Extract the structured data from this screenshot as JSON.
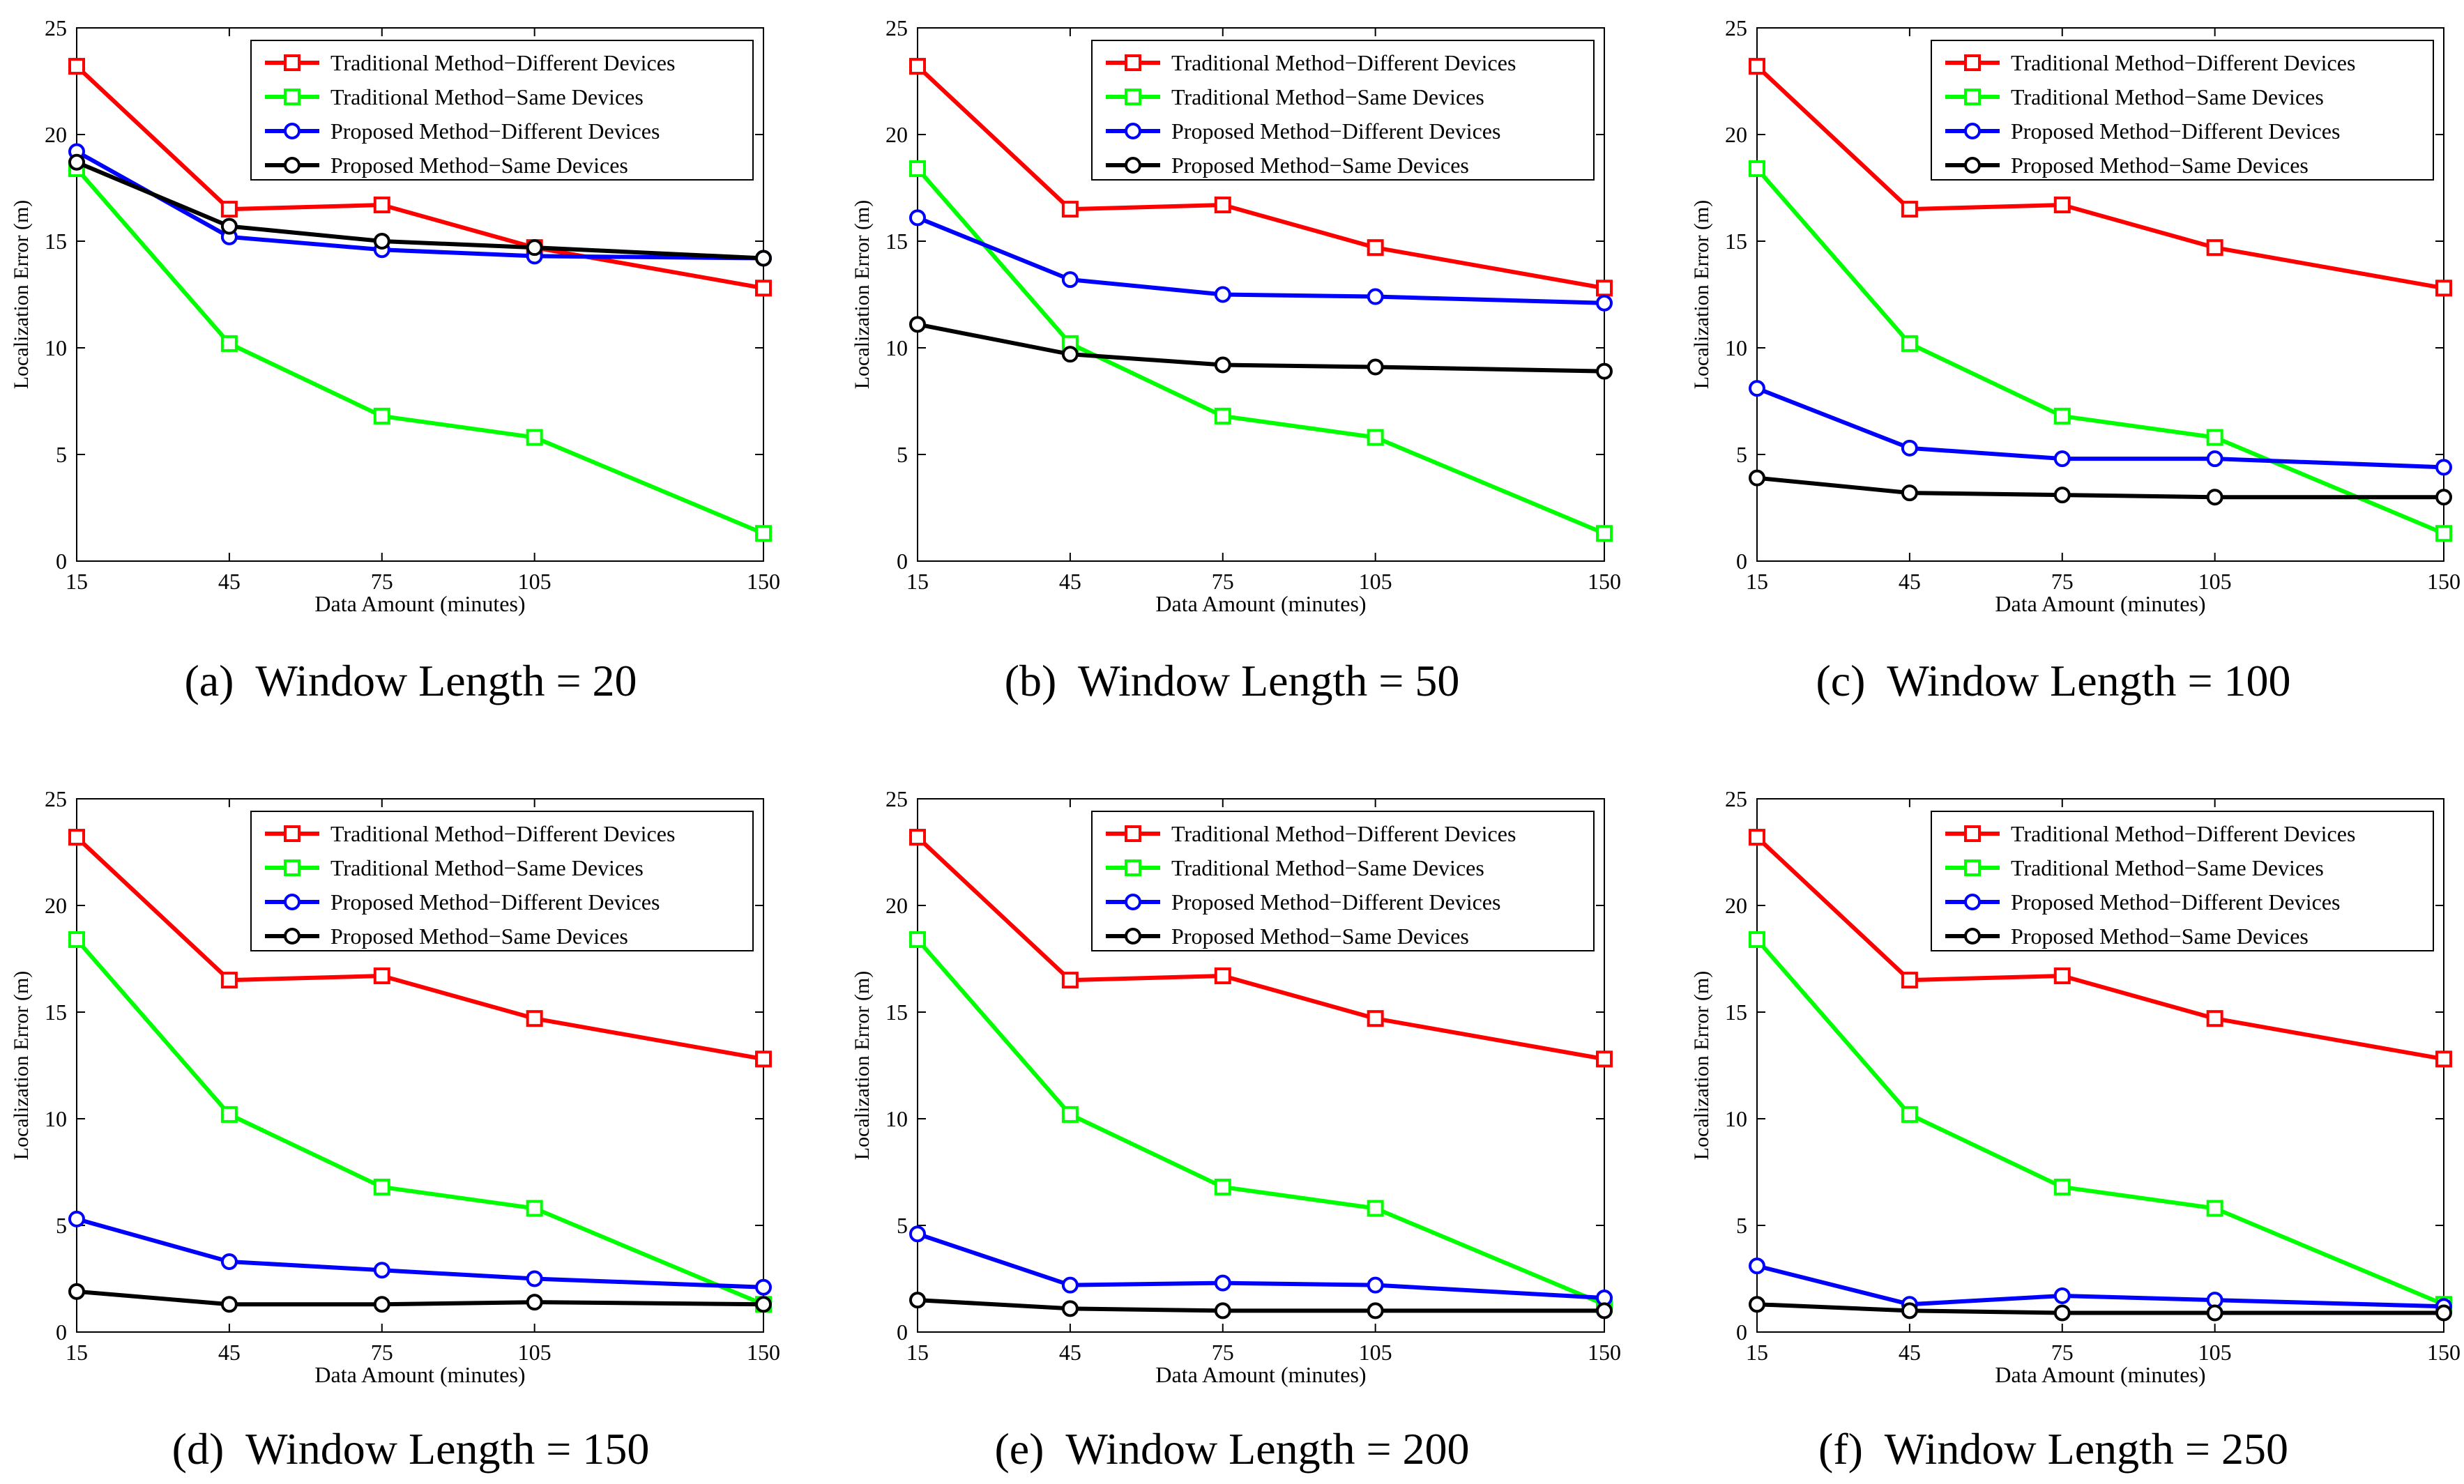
{
  "chart_data": [
    {
      "type": "line",
      "caption_letter": "(a)",
      "caption_text": "Window Length = 20",
      "xlabel": "Data Amount (minutes)",
      "ylabel": "Localization Error (m)",
      "x": [
        15,
        45,
        75,
        105,
        150
      ],
      "x_ticks": [
        "15",
        "45",
        "75",
        "105",
        "150"
      ],
      "y_ticks": [
        "0",
        "5",
        "10",
        "15",
        "20",
        "25"
      ],
      "ylim": [
        0,
        25
      ],
      "legend_position": "top-right",
      "series": [
        {
          "name": "Traditional Method−Different Devices",
          "color": "#ff0000",
          "marker": "square",
          "values": [
            23.2,
            16.5,
            16.7,
            14.7,
            12.8
          ]
        },
        {
          "name": "Traditional Method−Same Devices",
          "color": "#00ff00",
          "marker": "square",
          "values": [
            18.4,
            10.2,
            6.8,
            5.8,
            1.3
          ]
        },
        {
          "name": "Proposed Method−Different Devices",
          "color": "#0000ff",
          "marker": "circle",
          "values": [
            19.2,
            15.2,
            14.6,
            14.3,
            14.2
          ]
        },
        {
          "name": "Proposed Method−Same Devices",
          "color": "#000000",
          "marker": "circle",
          "values": [
            18.7,
            15.7,
            15.0,
            14.7,
            14.2
          ]
        }
      ]
    },
    {
      "type": "line",
      "caption_letter": "(b)",
      "caption_text": "Window Length = 50",
      "xlabel": "Data Amount (minutes)",
      "ylabel": "Localization Error (m)",
      "x": [
        15,
        45,
        75,
        105,
        150
      ],
      "x_ticks": [
        "15",
        "45",
        "75",
        "105",
        "150"
      ],
      "y_ticks": [
        "0",
        "5",
        "10",
        "15",
        "20",
        "25"
      ],
      "ylim": [
        0,
        25
      ],
      "legend_position": "top-right",
      "series": [
        {
          "name": "Traditional Method−Different Devices",
          "color": "#ff0000",
          "marker": "square",
          "values": [
            23.2,
            16.5,
            16.7,
            14.7,
            12.8
          ]
        },
        {
          "name": "Traditional Method−Same Devices",
          "color": "#00ff00",
          "marker": "square",
          "values": [
            18.4,
            10.2,
            6.8,
            5.8,
            1.3
          ]
        },
        {
          "name": "Proposed Method−Different Devices",
          "color": "#0000ff",
          "marker": "circle",
          "values": [
            16.1,
            13.2,
            12.5,
            12.4,
            12.1
          ]
        },
        {
          "name": "Proposed Method−Same Devices",
          "color": "#000000",
          "marker": "circle",
          "values": [
            11.1,
            9.7,
            9.2,
            9.1,
            8.9
          ]
        }
      ]
    },
    {
      "type": "line",
      "caption_letter": "(c)",
      "caption_text": "Window Length = 100",
      "xlabel": "Data Amount (minutes)",
      "ylabel": "Localization Error (m)",
      "x": [
        15,
        45,
        75,
        105,
        150
      ],
      "x_ticks": [
        "15",
        "45",
        "75",
        "105",
        "150"
      ],
      "y_ticks": [
        "0",
        "5",
        "10",
        "15",
        "20",
        "25"
      ],
      "ylim": [
        0,
        25
      ],
      "legend_position": "top-right",
      "series": [
        {
          "name": "Traditional Method−Different Devices",
          "color": "#ff0000",
          "marker": "square",
          "values": [
            23.2,
            16.5,
            16.7,
            14.7,
            12.8
          ]
        },
        {
          "name": "Traditional Method−Same Devices",
          "color": "#00ff00",
          "marker": "square",
          "values": [
            18.4,
            10.2,
            6.8,
            5.8,
            1.3
          ]
        },
        {
          "name": "Proposed Method−Different Devices",
          "color": "#0000ff",
          "marker": "circle",
          "values": [
            8.1,
            5.3,
            4.8,
            4.8,
            4.4
          ]
        },
        {
          "name": "Proposed Method−Same Devices",
          "color": "#000000",
          "marker": "circle",
          "values": [
            3.9,
            3.2,
            3.1,
            3.0,
            3.0
          ]
        }
      ]
    },
    {
      "type": "line",
      "caption_letter": "(d)",
      "caption_text": "Window Length = 150",
      "xlabel": "Data Amount (minutes)",
      "ylabel": "Localization Error (m)",
      "x": [
        15,
        45,
        75,
        105,
        150
      ],
      "x_ticks": [
        "15",
        "45",
        "75",
        "105",
        "150"
      ],
      "y_ticks": [
        "0",
        "5",
        "10",
        "15",
        "20",
        "25"
      ],
      "ylim": [
        0,
        25
      ],
      "legend_position": "top-right",
      "series": [
        {
          "name": "Traditional Method−Different Devices",
          "color": "#ff0000",
          "marker": "square",
          "values": [
            23.2,
            16.5,
            16.7,
            14.7,
            12.8
          ]
        },
        {
          "name": "Traditional Method−Same Devices",
          "color": "#00ff00",
          "marker": "square",
          "values": [
            18.4,
            10.2,
            6.8,
            5.8,
            1.3
          ]
        },
        {
          "name": "Proposed Method−Different Devices",
          "color": "#0000ff",
          "marker": "circle",
          "values": [
            5.3,
            3.3,
            2.9,
            2.5,
            2.1
          ]
        },
        {
          "name": "Proposed Method−Same Devices",
          "color": "#000000",
          "marker": "circle",
          "values": [
            1.9,
            1.3,
            1.3,
            1.4,
            1.3
          ]
        }
      ]
    },
    {
      "type": "line",
      "caption_letter": "(e)",
      "caption_text": "Window Length = 200",
      "xlabel": "Data Amount (minutes)",
      "ylabel": "Localization Error (m)",
      "x": [
        15,
        45,
        75,
        105,
        150
      ],
      "x_ticks": [
        "15",
        "45",
        "75",
        "105",
        "150"
      ],
      "y_ticks": [
        "0",
        "5",
        "10",
        "15",
        "20",
        "25"
      ],
      "ylim": [
        0,
        25
      ],
      "legend_position": "top-right",
      "series": [
        {
          "name": "Traditional Method−Different Devices",
          "color": "#ff0000",
          "marker": "square",
          "values": [
            23.2,
            16.5,
            16.7,
            14.7,
            12.8
          ]
        },
        {
          "name": "Traditional Method−Same Devices",
          "color": "#00ff00",
          "marker": "square",
          "values": [
            18.4,
            10.2,
            6.8,
            5.8,
            1.3
          ]
        },
        {
          "name": "Proposed Method−Different Devices",
          "color": "#0000ff",
          "marker": "circle",
          "values": [
            4.6,
            2.2,
            2.3,
            2.2,
            1.6
          ]
        },
        {
          "name": "Proposed Method−Same Devices",
          "color": "#000000",
          "marker": "circle",
          "values": [
            1.5,
            1.1,
            1.0,
            1.0,
            1.0
          ]
        }
      ]
    },
    {
      "type": "line",
      "caption_letter": "(f)",
      "caption_text": "Window Length = 250",
      "xlabel": "Data Amount (minutes)",
      "ylabel": "Localization Error (m)",
      "x": [
        15,
        45,
        75,
        105,
        150
      ],
      "x_ticks": [
        "15",
        "45",
        "75",
        "105",
        "150"
      ],
      "y_ticks": [
        "0",
        "5",
        "10",
        "15",
        "20",
        "25"
      ],
      "ylim": [
        0,
        25
      ],
      "legend_position": "top-right",
      "series": [
        {
          "name": "Traditional Method−Different Devices",
          "color": "#ff0000",
          "marker": "square",
          "values": [
            23.2,
            16.5,
            16.7,
            14.7,
            12.8
          ]
        },
        {
          "name": "Traditional Method−Same Devices",
          "color": "#00ff00",
          "marker": "square",
          "values": [
            18.4,
            10.2,
            6.8,
            5.8,
            1.3
          ]
        },
        {
          "name": "Proposed Method−Different Devices",
          "color": "#0000ff",
          "marker": "circle",
          "values": [
            3.1,
            1.3,
            1.7,
            1.5,
            1.2
          ]
        },
        {
          "name": "Proposed Method−Same Devices",
          "color": "#000000",
          "marker": "circle",
          "values": [
            1.3,
            1.0,
            0.9,
            0.9,
            0.9
          ]
        }
      ]
    }
  ]
}
